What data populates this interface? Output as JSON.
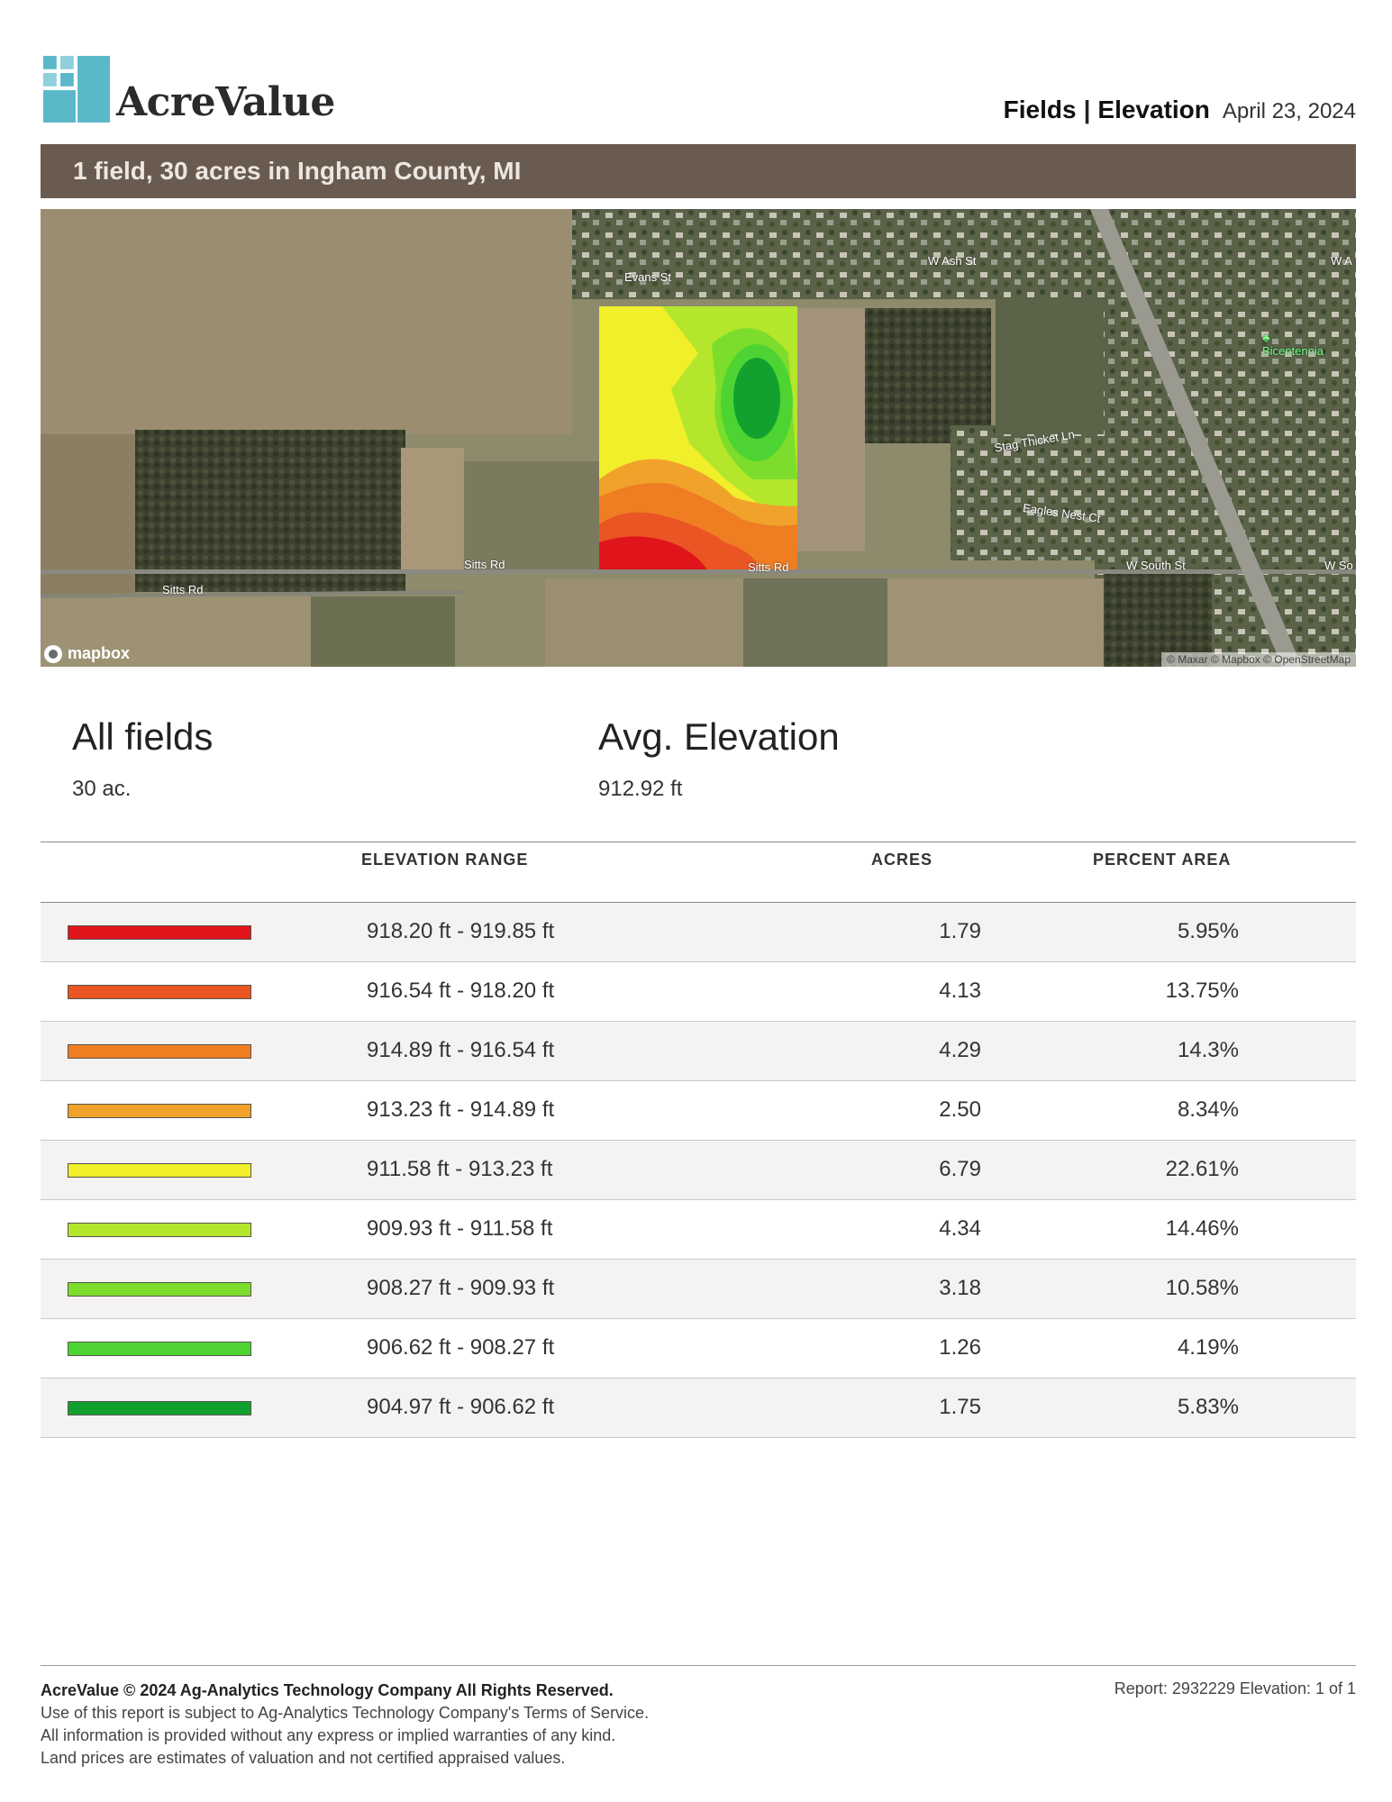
{
  "header": {
    "brand": "AcreValue",
    "report_type": "Fields",
    "report_section": "Elevation",
    "separator": "|",
    "date": "April 23, 2024",
    "accent_color": "#5bb8c9"
  },
  "banner": {
    "text": "1 field, 30 acres in Ingham County, MI",
    "color": "#6a5b50"
  },
  "map": {
    "road_labels": [
      "Evans St",
      "W Ash St",
      "Stag Thicket Ln",
      "Eagles Nest Ct",
      "Sitts Rd",
      "Sitts Rd",
      "Sitts Rd",
      "W South St",
      "W So",
      "W A"
    ],
    "poi_label": "Bicentennia",
    "logo_text": "mapbox",
    "attribution": "© Maxar © Mapbox © OpenStreetMap"
  },
  "summary": {
    "fields_label": "All fields",
    "fields_value": "30 ac.",
    "elevation_label": "Avg. Elevation",
    "elevation_value": "912.92 ft"
  },
  "table": {
    "headers": {
      "range": "ELEVATION RANGE",
      "acres": "ACRES",
      "percent": "PERCENT AREA"
    },
    "rows": [
      {
        "color": "#e0151c",
        "range": "918.20 ft - 919.85 ft",
        "acres": "1.79",
        "percent": "5.95%"
      },
      {
        "color": "#ea5523",
        "range": "916.54 ft - 918.20 ft",
        "acres": "4.13",
        "percent": "13.75%"
      },
      {
        "color": "#ef7d22",
        "range": "914.89 ft - 916.54 ft",
        "acres": "4.29",
        "percent": "14.3%"
      },
      {
        "color": "#f0a22a",
        "range": "913.23 ft - 914.89 ft",
        "acres": "2.50",
        "percent": "8.34%"
      },
      {
        "color": "#f1ef2a",
        "range": "911.58 ft - 913.23 ft",
        "acres": "6.79",
        "percent": "22.61%"
      },
      {
        "color": "#b4e62c",
        "range": "909.93 ft - 911.58 ft",
        "acres": "4.34",
        "percent": "14.46%"
      },
      {
        "color": "#7cdd2c",
        "range": "908.27 ft - 909.93 ft",
        "acres": "3.18",
        "percent": "10.58%"
      },
      {
        "color": "#4dd432",
        "range": "906.62 ft - 908.27 ft",
        "acres": "1.26",
        "percent": "4.19%"
      },
      {
        "color": "#12a12e",
        "range": "904.97 ft - 906.62 ft",
        "acres": "1.75",
        "percent": "5.83%"
      }
    ]
  },
  "footer": {
    "copyright": "AcreValue © 2024 Ag-Analytics Technology Company All Rights Reserved.",
    "line1": "Use of this report is subject to Ag-Analytics Technology Company's Terms of Service.",
    "line2": "All information is provided without any express or implied warranties of any kind.",
    "line3": "Land prices are estimates of valuation and not certified appraised values.",
    "report_ref": "Report: 2932229 Elevation: 1 of 1"
  }
}
